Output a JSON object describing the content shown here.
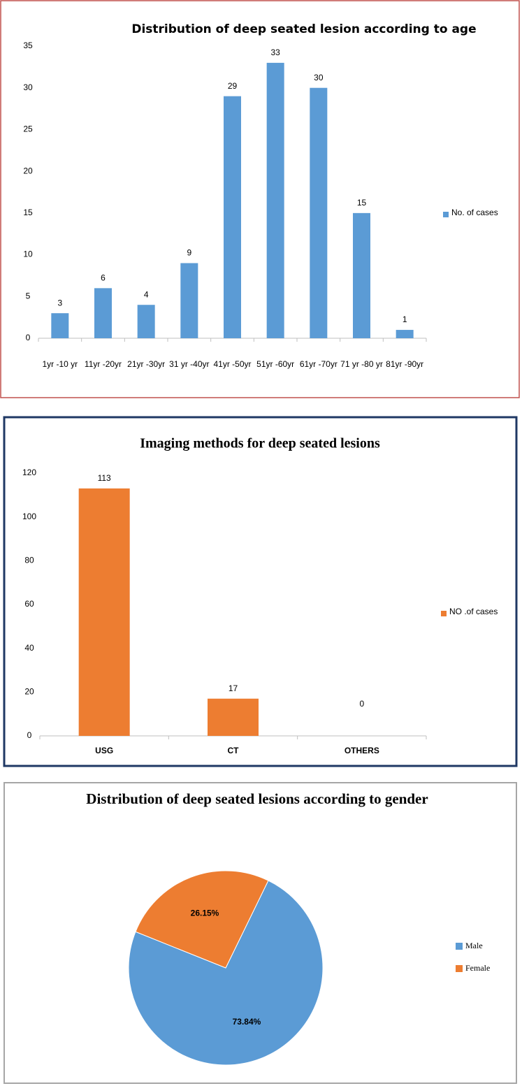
{
  "chart_data": [
    {
      "type": "bar",
      "title": "Distribution of deep seated lesion according to age",
      "categories": [
        "1yr -10 yr",
        "11yr -20yr",
        "21yr -30yr",
        "31 yr -40yr",
        "41yr -50yr",
        "51yr -60yr",
        "61yr -70yr",
        "71 yr -80 yr",
        "81yr -90yr"
      ],
      "series": [
        {
          "name": "No.  of cases",
          "color": "#5b9bd5",
          "values": [
            3,
            6,
            4,
            9,
            29,
            33,
            30,
            15,
            1
          ]
        }
      ],
      "ylim": [
        0,
        35
      ],
      "yticks": [
        0,
        5,
        10,
        15,
        20,
        25,
        30,
        35
      ],
      "legend": "right"
    },
    {
      "type": "bar",
      "title": "Imaging methods for deep seated lesions",
      "categories": [
        "USG",
        "CT",
        "OTHERS"
      ],
      "series": [
        {
          "name": "NO .of cases",
          "color": "#ed7d31",
          "values": [
            113,
            17,
            0
          ]
        }
      ],
      "ylim": [
        0,
        120
      ],
      "yticks": [
        0,
        20,
        40,
        60,
        80,
        100,
        120
      ],
      "legend": "right"
    },
    {
      "type": "pie",
      "title": "Distribution of deep seated lesions according to gender",
      "categories": [
        "Male",
        "Female"
      ],
      "values": [
        73.84,
        26.15
      ],
      "value_labels": [
        "73.84%",
        "26.15%"
      ],
      "colors": [
        "#5b9bd5",
        "#ed7d31"
      ],
      "legend": "right"
    }
  ]
}
